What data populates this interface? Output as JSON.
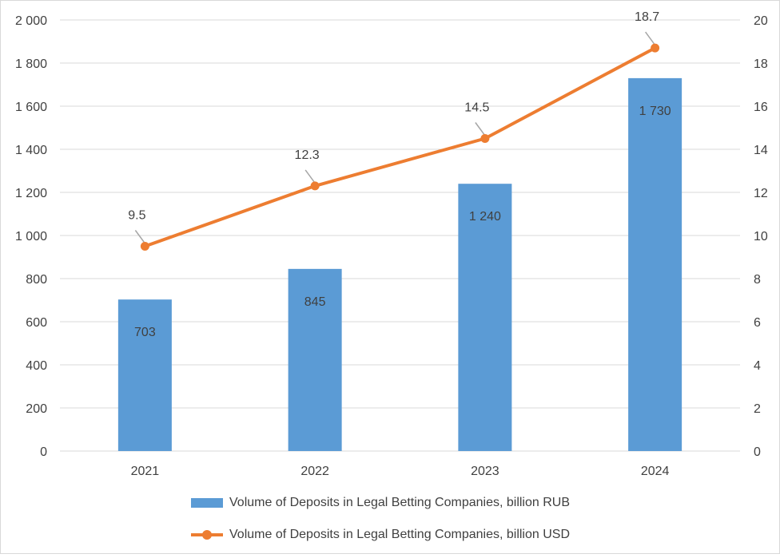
{
  "chart_data": {
    "type": "bar+line",
    "title": "",
    "categories": [
      "2021",
      "2022",
      "2023",
      "2024"
    ],
    "series": [
      {
        "name": "Volume of Deposits in Legal Betting Companies, billion RUB",
        "kind": "bar",
        "axis": "left",
        "values": [
          703,
          845,
          1240,
          1730
        ],
        "labels": [
          "703",
          "845",
          "1 240",
          "1 730"
        ],
        "color": "#5B9BD5"
      },
      {
        "name": "Volume of Deposits in Legal Betting Companies, billion USD",
        "kind": "line",
        "axis": "right",
        "values": [
          9.5,
          12.3,
          14.5,
          18.7
        ],
        "labels": [
          "9.5",
          "12.3",
          "14.5",
          "18.7"
        ],
        "color": "#ED7D31"
      }
    ],
    "left_axis": {
      "min": 0,
      "max": 2000,
      "ticks": [
        0,
        200,
        400,
        600,
        800,
        1000,
        1200,
        1400,
        1600,
        1800,
        2000
      ],
      "tick_labels": [
        "0",
        "200",
        "400",
        "600",
        "800",
        "1 000",
        "1 200",
        "1 400",
        "1 600",
        "1 800",
        "2 000"
      ]
    },
    "right_axis": {
      "min": 0,
      "max": 20,
      "ticks": [
        0,
        2,
        4,
        6,
        8,
        10,
        12,
        14,
        16,
        18,
        20
      ],
      "tick_labels": [
        "0",
        "2",
        "4",
        "6",
        "8",
        "10",
        "12",
        "14",
        "16",
        "18",
        "20"
      ]
    },
    "grid": true,
    "legend_position": "bottom"
  },
  "colors": {
    "grid": "#d9d9d9",
    "text": "#404040",
    "leader": "#a6a6a6"
  }
}
